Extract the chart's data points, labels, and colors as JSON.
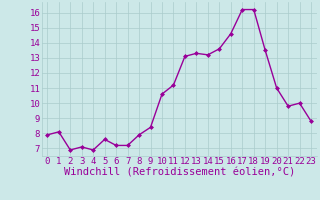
{
  "x": [
    0,
    1,
    2,
    3,
    4,
    5,
    6,
    7,
    8,
    9,
    10,
    11,
    12,
    13,
    14,
    15,
    16,
    17,
    18,
    19,
    20,
    21,
    22,
    23
  ],
  "y": [
    7.9,
    8.1,
    6.9,
    7.1,
    6.9,
    7.6,
    7.2,
    7.2,
    7.9,
    8.4,
    10.6,
    11.2,
    13.1,
    13.3,
    13.2,
    13.6,
    14.6,
    16.2,
    16.2,
    13.5,
    11.0,
    9.8,
    10.0,
    8.8
  ],
  "line_color": "#990099",
  "marker": "D",
  "marker_size": 2.0,
  "bg_color": "#cce8e8",
  "grid_color": "#aacccc",
  "xlabel": "Windchill (Refroidissement éolien,°C)",
  "xlabel_color": "#990099",
  "xlim": [
    -0.5,
    23.5
  ],
  "ylim": [
    6.5,
    16.7
  ],
  "yticks": [
    7,
    8,
    9,
    10,
    11,
    12,
    13,
    14,
    15,
    16
  ],
  "xticks": [
    0,
    1,
    2,
    3,
    4,
    5,
    6,
    7,
    8,
    9,
    10,
    11,
    12,
    13,
    14,
    15,
    16,
    17,
    18,
    19,
    20,
    21,
    22,
    23
  ],
  "tick_label_color": "#990099",
  "tick_label_fontsize": 6.5,
  "xlabel_fontsize": 7.5,
  "line_width": 1.0
}
